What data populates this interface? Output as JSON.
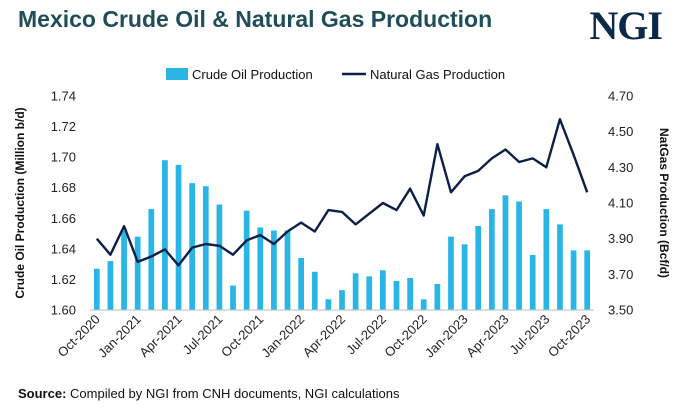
{
  "title": "Mexico Crude Oil & Natural Gas Production",
  "logo": "NGI",
  "source_label": "Source:",
  "source_text": " Compiled by NGI from CNH documents, NGI calculations",
  "colors": {
    "bar": "#29b6e6",
    "line": "#0b1f4a",
    "title": "#1f4e5a",
    "axis": "#222222"
  },
  "chart_data": {
    "type": "bar+line",
    "ylabel": "Crude Oil Production (Million b/d)",
    "y2label": "NatGas Production (Bcf/d)",
    "ylim": [
      1.6,
      1.74
    ],
    "y2lim": [
      3.5,
      4.7
    ],
    "yticks": [
      "1.60",
      "1.62",
      "1.64",
      "1.66",
      "1.68",
      "1.70",
      "1.72",
      "1.74"
    ],
    "y2ticks": [
      "3.50",
      "3.70",
      "3.90",
      "4.10",
      "4.30",
      "4.50",
      "4.70"
    ],
    "xtick_labels": [
      "Oct-2020",
      "Jan-2021",
      "Apr-2021",
      "Jul-2021",
      "Oct-2021",
      "Jan-2022",
      "Apr-2022",
      "Jul-2022",
      "Oct-2022",
      "Jan-2023",
      "Apr-2023",
      "Jul-2023",
      "Oct-2023"
    ],
    "legend": [
      "Crude Oil Production",
      "Natural Gas Production"
    ],
    "legend_position": "top",
    "categories": [
      "Oct-2020",
      "Nov-2020",
      "Dec-2020",
      "Jan-2021",
      "Feb-2021",
      "Mar-2021",
      "Apr-2021",
      "May-2021",
      "Jun-2021",
      "Jul-2021",
      "Aug-2021",
      "Sep-2021",
      "Oct-2021",
      "Nov-2021",
      "Dec-2021",
      "Jan-2022",
      "Feb-2022",
      "Mar-2022",
      "Apr-2022",
      "May-2022",
      "Jun-2022",
      "Jul-2022",
      "Aug-2022",
      "Sep-2022",
      "Oct-2022",
      "Nov-2022",
      "Dec-2022",
      "Jan-2023",
      "Feb-2023",
      "Mar-2023",
      "Apr-2023",
      "May-2023",
      "Jun-2023",
      "Jul-2023",
      "Aug-2023",
      "Sep-2023",
      "Oct-2023"
    ],
    "series": [
      {
        "name": "Crude Oil Production",
        "axis": "left",
        "type": "bar",
        "values": [
          1.627,
          1.632,
          1.652,
          1.648,
          1.666,
          1.698,
          1.695,
          1.683,
          1.681,
          1.669,
          1.616,
          1.665,
          1.654,
          1.652,
          1.652,
          1.634,
          1.625,
          1.607,
          1.613,
          1.624,
          1.622,
          1.626,
          1.619,
          1.621,
          1.607,
          1.617,
          1.648,
          1.643,
          1.655,
          1.666,
          1.675,
          1.671,
          1.636,
          1.666,
          1.656,
          1.639,
          1.639
        ]
      },
      {
        "name": "Natural Gas Production",
        "axis": "right",
        "type": "line",
        "values": [
          3.9,
          3.81,
          3.97,
          3.77,
          3.8,
          3.84,
          3.75,
          3.85,
          3.87,
          3.86,
          3.81,
          3.89,
          3.92,
          3.87,
          3.94,
          3.99,
          3.94,
          4.06,
          4.05,
          3.98,
          4.04,
          4.1,
          4.06,
          4.18,
          4.03,
          4.43,
          4.16,
          4.25,
          4.28,
          4.35,
          4.4,
          4.33,
          4.35,
          4.3,
          4.57,
          4.37,
          4.16
        ]
      }
    ]
  }
}
